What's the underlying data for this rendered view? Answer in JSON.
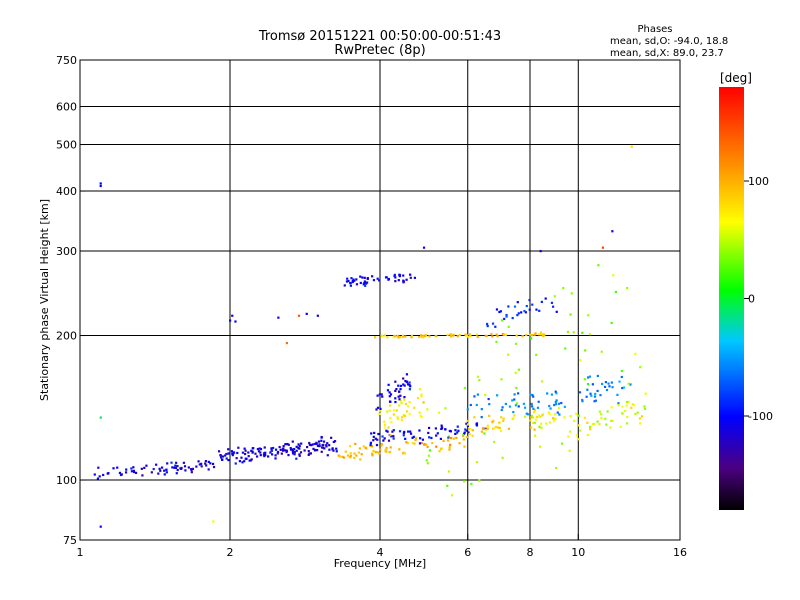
{
  "header": {
    "title_line1": "Tromsø 20151221 00:50:00-00:51:43",
    "title_line2": "RwPretec (8p)"
  },
  "stats": {
    "heading": "Phases",
    "line_o": "mean, sd,O: -94.0, 18.8",
    "line_x": "mean, sd,X:  89.0, 23.7"
  },
  "colorbar": {
    "unit": "[deg]",
    "ticks": [
      {
        "value": 100,
        "label": "100"
      },
      {
        "value": 0,
        "label": "0"
      },
      {
        "value": -100,
        "label": "-100"
      }
    ],
    "range": [
      -180,
      180
    ]
  },
  "chart_data": {
    "type": "scatter",
    "title": "Tromsø 20151221 00:50:00-00:51:43",
    "subtitle": "RwPretec (8p)",
    "xlabel": "Frequency [MHz]",
    "ylabel": "Stationary phase Virtual Height [km]",
    "xscale": "log",
    "yscale": "log",
    "xlim": [
      1,
      16
    ],
    "ylim": [
      75,
      750
    ],
    "xticks": [
      1,
      2,
      4,
      6,
      8,
      10,
      16
    ],
    "yticks": [
      75,
      100,
      200,
      300,
      400,
      500,
      600,
      750
    ],
    "x_gridlines": [
      2,
      4,
      6,
      8,
      10
    ],
    "y_gridlines": [
      100,
      200,
      300,
      400,
      500,
      600
    ],
    "grid": true,
    "color_value": "phase [deg]",
    "clusters": [
      {
        "x": [
          1.05,
          1.9
        ],
        "y": [
          101,
          110
        ],
        "phase": -110,
        "count": 70,
        "spread": 0.018
      },
      {
        "x": [
          1.9,
          3.3
        ],
        "y": [
          108,
          122
        ],
        "phase": -112,
        "count": 150,
        "spread": 0.03
      },
      {
        "x": [
          3.3,
          6.0
        ],
        "y": [
          110,
          124
        ],
        "phase": 95,
        "count": 80,
        "spread": 0.02
      },
      {
        "x": [
          3.8,
          6.5
        ],
        "y": [
          118,
          132
        ],
        "phase": -105,
        "count": 70,
        "spread": 0.025
      },
      {
        "x": [
          4.0,
          5.0
        ],
        "y": [
          122,
          158
        ],
        "phase": 75,
        "count": 40,
        "spread": 0.025
      },
      {
        "x": [
          3.9,
          4.6
        ],
        "y": [
          140,
          165
        ],
        "phase": -110,
        "count": 40,
        "spread": 0.03
      },
      {
        "x": [
          3.4,
          4.7
        ],
        "y": [
          255,
          270
        ],
        "phase": -105,
        "count": 50,
        "spread": 0.02
      },
      {
        "x": [
          3.9,
          8.6
        ],
        "y": [
          198,
          202
        ],
        "phase": 90,
        "count": 70,
        "spread": 0.008
      },
      {
        "x": [
          6.0,
          9.5
        ],
        "y": [
          125,
          140
        ],
        "phase": 80,
        "count": 60,
        "spread": 0.05
      },
      {
        "x": [
          6.0,
          12.5
        ],
        "y": [
          130,
          165
        ],
        "phase": -60,
        "count": 80,
        "spread": 0.06
      },
      {
        "x": [
          6.5,
          9.0
        ],
        "y": [
          205,
          245
        ],
        "phase": -90,
        "count": 30,
        "spread": 0.04
      },
      {
        "x": [
          9.5,
          13.5
        ],
        "y": [
          120,
          150
        ],
        "phase": 60,
        "count": 50,
        "spread": 0.05
      },
      {
        "x": [
          5.0,
          13.0
        ],
        "y": [
          80,
          300
        ],
        "phase": 40,
        "count": 70,
        "spread": 0.2
      }
    ],
    "points": [
      {
        "x": 1.1,
        "y": 410,
        "phase": -100
      },
      {
        "x": 1.1,
        "y": 415,
        "phase": -100
      },
      {
        "x": 2.0,
        "y": 215,
        "phase": -110
      },
      {
        "x": 2.02,
        "y": 220,
        "phase": -110
      },
      {
        "x": 2.05,
        "y": 214,
        "phase": -105
      },
      {
        "x": 2.5,
        "y": 218,
        "phase": -110
      },
      {
        "x": 2.75,
        "y": 220,
        "phase": 140
      },
      {
        "x": 2.85,
        "y": 222,
        "phase": -100
      },
      {
        "x": 3.0,
        "y": 220,
        "phase": -110
      },
      {
        "x": 2.6,
        "y": 193,
        "phase": 130
      },
      {
        "x": 1.1,
        "y": 135,
        "phase": -10
      },
      {
        "x": 1.1,
        "y": 80,
        "phase": -110
      },
      {
        "x": 1.85,
        "y": 82,
        "phase": 60
      },
      {
        "x": 4.9,
        "y": 305,
        "phase": -110
      },
      {
        "x": 12.8,
        "y": 495,
        "phase": 80
      },
      {
        "x": 11.7,
        "y": 330,
        "phase": -110
      },
      {
        "x": 11.2,
        "y": 305,
        "phase": 150
      },
      {
        "x": 8.4,
        "y": 300,
        "phase": -110
      }
    ]
  }
}
